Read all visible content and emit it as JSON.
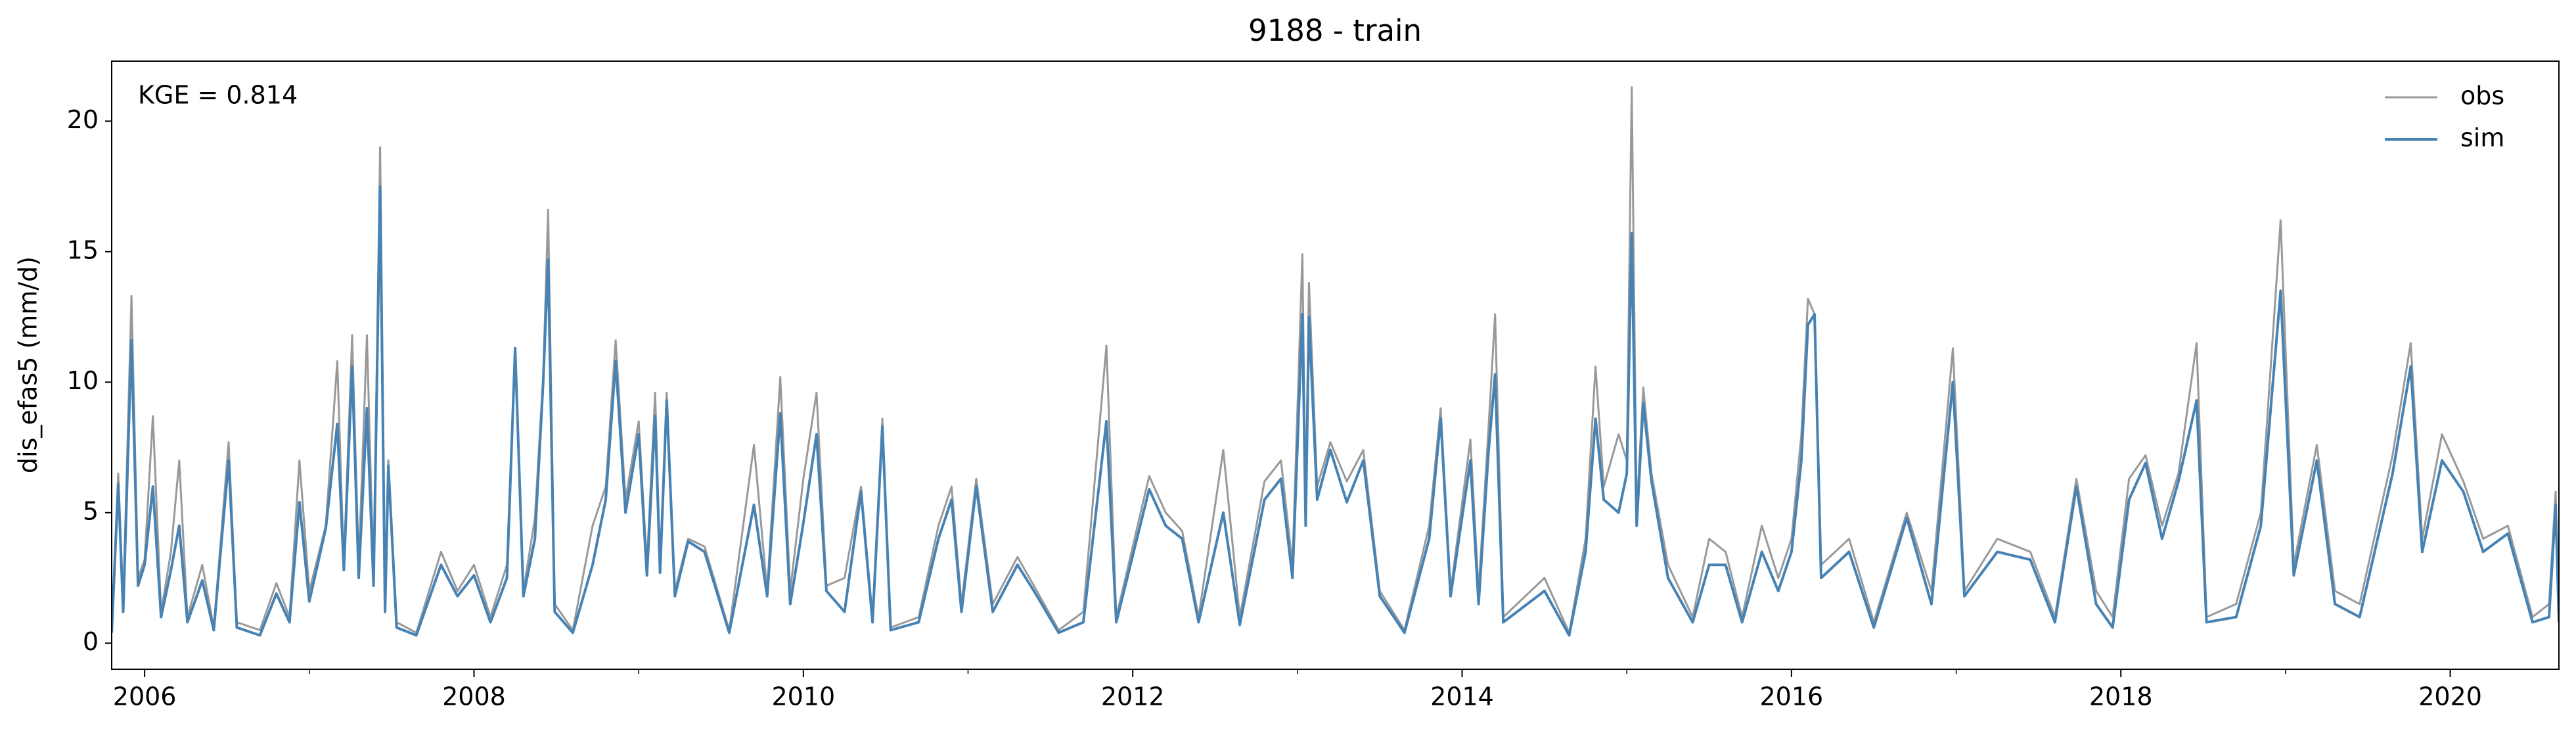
{
  "chart_data": {
    "type": "line",
    "title": "9188 - train",
    "ylabel": "dis_efas5 (mm/d)",
    "annotation": "KGE = 0.814",
    "legend": "upper right",
    "xlim": [
      2005.8,
      2020.66
    ],
    "xticks": [
      2006,
      2008,
      2010,
      2012,
      2014,
      2016,
      2018,
      2020
    ],
    "x_minor_ticks": [
      2007,
      2009,
      2011,
      2013,
      2015,
      2017,
      2019
    ],
    "ylim": [
      -1.0,
      22.3
    ],
    "yticks": [
      0,
      5,
      10,
      15,
      20
    ],
    "x": [
      2005.8,
      2005.84,
      2005.87,
      2005.92,
      2005.96,
      2006.0,
      2006.05,
      2006.1,
      2006.16,
      2006.21,
      2006.26,
      2006.35,
      2006.42,
      2006.51,
      2006.56,
      2006.7,
      2006.8,
      2006.88,
      2006.94,
      2007.0,
      2007.1,
      2007.17,
      2007.21,
      2007.26,
      2007.3,
      2007.35,
      2007.39,
      2007.43,
      2007.46,
      2007.48,
      2007.53,
      2007.65,
      2007.8,
      2007.9,
      2008.0,
      2008.1,
      2008.2,
      2008.25,
      2008.3,
      2008.37,
      2008.42,
      2008.45,
      2008.49,
      2008.6,
      2008.72,
      2008.8,
      2008.86,
      2008.92,
      2009.0,
      2009.05,
      2009.1,
      2009.13,
      2009.17,
      2009.22,
      2009.3,
      2009.4,
      2009.55,
      2009.7,
      2009.78,
      2009.86,
      2009.92,
      2010.0,
      2010.08,
      2010.14,
      2010.25,
      2010.35,
      2010.42,
      2010.48,
      2010.53,
      2010.7,
      2010.82,
      2010.9,
      2010.96,
      2011.05,
      2011.15,
      2011.3,
      2011.4,
      2011.55,
      2011.7,
      2011.84,
      2011.9,
      2012.1,
      2012.2,
      2012.3,
      2012.4,
      2012.55,
      2012.65,
      2012.8,
      2012.9,
      2012.97,
      2013.03,
      2013.05,
      2013.07,
      2013.12,
      2013.2,
      2013.3,
      2013.4,
      2013.5,
      2013.65,
      2013.8,
      2013.87,
      2013.93,
      2014.05,
      2014.1,
      2014.16,
      2014.2,
      2014.25,
      2014.5,
      2014.65,
      2014.75,
      2014.81,
      2014.86,
      2014.95,
      2015.0,
      2015.03,
      2015.06,
      2015.1,
      2015.15,
      2015.25,
      2015.4,
      2015.5,
      2015.6,
      2015.7,
      2015.82,
      2015.92,
      2016.0,
      2016.06,
      2016.1,
      2016.14,
      2016.18,
      2016.35,
      2016.5,
      2016.7,
      2016.85,
      2016.98,
      2017.05,
      2017.25,
      2017.45,
      2017.6,
      2017.73,
      2017.85,
      2017.95,
      2018.05,
      2018.15,
      2018.25,
      2018.35,
      2018.46,
      2018.52,
      2018.7,
      2018.85,
      2018.97,
      2019.05,
      2019.19,
      2019.3,
      2019.45,
      2019.65,
      2019.76,
      2019.83,
      2019.95,
      2020.08,
      2020.2,
      2020.35,
      2020.5,
      2020.6,
      2020.64,
      2020.66
    ],
    "series": [
      {
        "name": "obs",
        "color": "#999999",
        "values": [
          0.5,
          6.5,
          1.5,
          13.3,
          2.5,
          3.2,
          8.7,
          1.2,
          3.5,
          7.0,
          1.0,
          3.0,
          0.6,
          7.7,
          0.8,
          0.5,
          2.3,
          1.0,
          7.0,
          2.0,
          4.5,
          10.8,
          3.0,
          11.8,
          3.0,
          11.8,
          2.5,
          19.0,
          1.5,
          7.0,
          0.8,
          0.4,
          3.5,
          2.0,
          3.0,
          1.0,
          3.0,
          11.3,
          2.0,
          4.8,
          10.2,
          16.6,
          1.5,
          0.5,
          4.5,
          6.0,
          11.6,
          5.5,
          8.5,
          3.0,
          9.6,
          3.0,
          9.6,
          2.0,
          4.0,
          3.7,
          0.5,
          7.6,
          2.0,
          10.2,
          2.0,
          6.3,
          9.6,
          2.2,
          2.5,
          6.0,
          1.0,
          8.6,
          0.6,
          1.0,
          4.5,
          6.0,
          1.5,
          6.3,
          1.5,
          3.3,
          2.2,
          0.5,
          1.2,
          11.4,
          1.0,
          6.4,
          5.0,
          4.3,
          1.0,
          7.4,
          1.0,
          6.2,
          7.0,
          3.0,
          14.9,
          5.0,
          13.8,
          6.0,
          7.7,
          6.2,
          7.4,
          2.0,
          0.5,
          4.5,
          9.0,
          2.0,
          7.8,
          2.0,
          8.2,
          12.6,
          1.0,
          2.5,
          0.4,
          4.0,
          10.6,
          6.0,
          8.0,
          7.0,
          21.3,
          5.0,
          9.8,
          6.5,
          3.0,
          1.0,
          4.0,
          3.5,
          1.0,
          4.5,
          2.5,
          4.0,
          8.0,
          13.2,
          12.6,
          3.0,
          4.0,
          0.8,
          5.0,
          2.0,
          11.3,
          2.0,
          4.0,
          3.5,
          1.0,
          6.3,
          2.0,
          1.0,
          6.3,
          7.2,
          4.5,
          6.5,
          11.5,
          1.0,
          1.5,
          5.0,
          16.2,
          3.0,
          7.6,
          2.0,
          1.5,
          7.2,
          11.5,
          4.0,
          8.0,
          6.2,
          4.0,
          4.5,
          1.0,
          1.5,
          5.8,
          1.0
        ]
      },
      {
        "name": "sim",
        "color": "#4682b4",
        "values": [
          0.4,
          6.1,
          1.2,
          11.6,
          2.2,
          3.0,
          6.0,
          1.0,
          2.8,
          4.5,
          0.8,
          2.4,
          0.5,
          7.0,
          0.6,
          0.3,
          1.9,
          0.8,
          5.4,
          1.6,
          4.4,
          8.4,
          2.8,
          10.6,
          2.5,
          9.0,
          2.2,
          17.5,
          1.2,
          6.8,
          0.6,
          0.3,
          3.0,
          1.8,
          2.6,
          0.8,
          2.5,
          11.3,
          1.8,
          4.0,
          10.0,
          14.7,
          1.2,
          0.4,
          3.0,
          5.5,
          10.8,
          5.0,
          8.0,
          2.6,
          8.7,
          2.7,
          9.3,
          1.8,
          3.9,
          3.5,
          0.4,
          5.3,
          1.8,
          8.8,
          1.5,
          4.6,
          8.0,
          2.0,
          1.2,
          5.8,
          0.8,
          8.3,
          0.5,
          0.8,
          4.0,
          5.5,
          1.2,
          6.0,
          1.2,
          3.0,
          2.0,
          0.4,
          0.8,
          8.5,
          0.8,
          5.9,
          4.5,
          4.0,
          0.8,
          5.0,
          0.7,
          5.5,
          6.3,
          2.5,
          12.6,
          4.5,
          12.5,
          5.5,
          7.4,
          5.4,
          7.0,
          1.8,
          0.4,
          4.0,
          8.6,
          1.8,
          7.0,
          1.5,
          7.3,
          10.3,
          0.8,
          2.0,
          0.3,
          3.5,
          8.6,
          5.5,
          5.0,
          6.5,
          15.7,
          4.5,
          9.2,
          6.2,
          2.5,
          0.8,
          3.0,
          3.0,
          0.8,
          3.5,
          2.0,
          3.5,
          7.0,
          12.2,
          12.6,
          2.5,
          3.5,
          0.6,
          4.8,
          1.5,
          10.0,
          1.8,
          3.5,
          3.2,
          0.8,
          6.0,
          1.5,
          0.6,
          5.5,
          6.9,
          4.0,
          6.2,
          9.3,
          0.8,
          1.0,
          4.5,
          13.5,
          2.6,
          7.0,
          1.5,
          1.0,
          6.5,
          10.6,
          3.5,
          7.0,
          5.8,
          3.5,
          4.2,
          0.8,
          1.0,
          5.3,
          0.8
        ]
      }
    ]
  }
}
